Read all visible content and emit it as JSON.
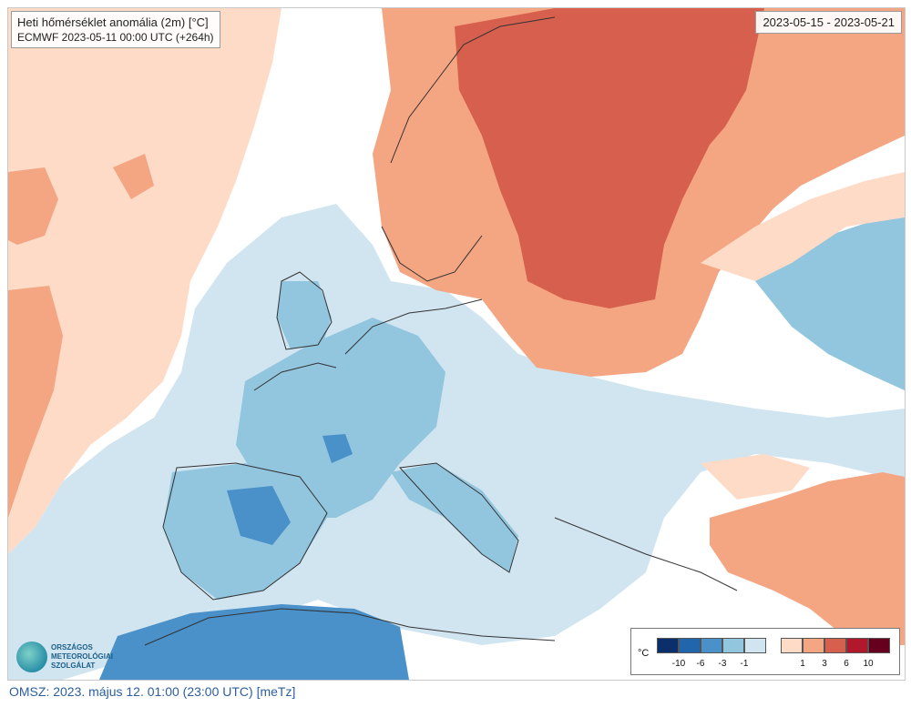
{
  "map": {
    "title": "Heti hőmérséklet anomália (2m) [°C]",
    "model_run": "ECMWF 2023-05-11 00:00 UTC (+264h)",
    "date_range": "2023-05-15 - 2023-05-21"
  },
  "legend": {
    "unit": "°C",
    "cold_labels": [
      "-10",
      "-6",
      "-3",
      "-1"
    ],
    "warm_labels": [
      "1",
      "3",
      "6",
      "10"
    ],
    "cold_colors": [
      "#0b2f6b",
      "#2166ac",
      "#4a90c9",
      "#92c5de",
      "#d1e5f0"
    ],
    "warm_colors": [
      "#fddbc7",
      "#f4a582",
      "#d6604d",
      "#b2182b",
      "#67001f"
    ]
  },
  "logo": {
    "line1": "ORSZÁGOS",
    "line2": "METEOROLÓGIAI",
    "line3": "SZOLGÁLAT"
  },
  "footer": {
    "text": "OMSZ: 2023. május 12. 01:00 (23:00  UTC)  [meTz]"
  }
}
